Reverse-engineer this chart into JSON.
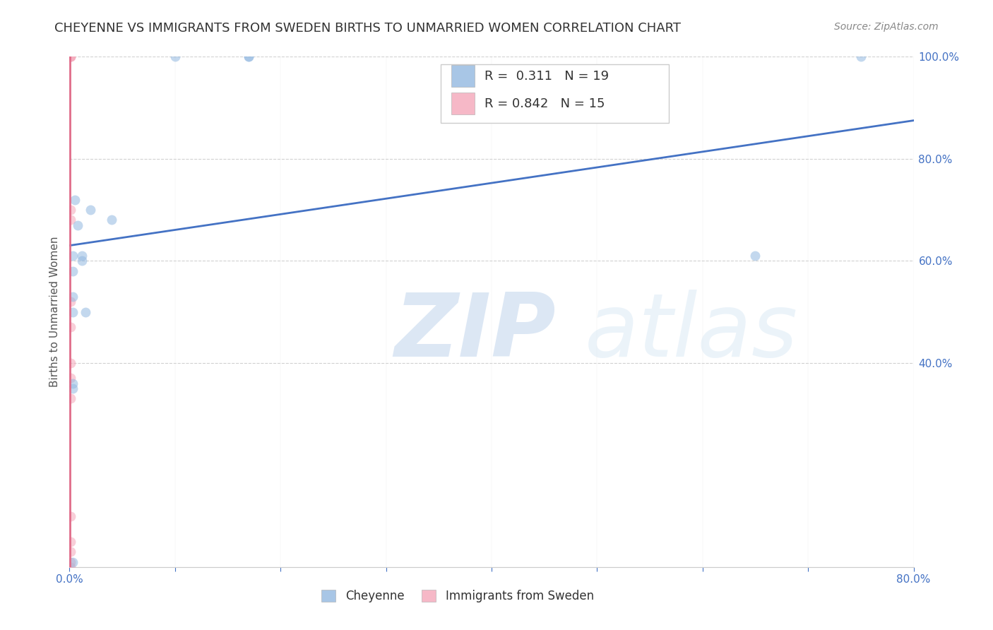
{
  "title": "CHEYENNE VS IMMIGRANTS FROM SWEDEN BIRTHS TO UNMARRIED WOMEN CORRELATION CHART",
  "source": "Source: ZipAtlas.com",
  "ylabel": "Births to Unmarried Women",
  "watermark": "ZIPatlas",
  "xlim": [
    0.0,
    0.8
  ],
  "ylim": [
    0.0,
    1.0
  ],
  "xticks": [
    0.0,
    0.1,
    0.2,
    0.3,
    0.4,
    0.5,
    0.6,
    0.7,
    0.8
  ],
  "xtick_labels_show": [
    "0.0%",
    "",
    "",
    "",
    "",
    "",
    "",
    "",
    "80.0%"
  ],
  "yticks_right": [
    0.4,
    0.6,
    0.8,
    1.0
  ],
  "ytick_labels_right": [
    "40.0%",
    "60.0%",
    "80.0%",
    "100.0%"
  ],
  "blue_color": "#92b8e0",
  "pink_color": "#f4a7b9",
  "trend_blue": "#4472c4",
  "trend_pink": "#e06c8a",
  "legend_R_blue": "0.311",
  "legend_N_blue": "19",
  "legend_R_pink": "0.842",
  "legend_N_pink": "15",
  "cheyenne_label": "Cheyenne",
  "sweden_label": "Immigrants from Sweden",
  "cheyenne_x": [
    0.003,
    0.003,
    0.003,
    0.003,
    0.003,
    0.003,
    0.003,
    0.005,
    0.008,
    0.012,
    0.012,
    0.015,
    0.02,
    0.04,
    0.1,
    0.17,
    0.17,
    0.65,
    0.75
  ],
  "cheyenne_y": [
    0.01,
    0.35,
    0.36,
    0.53,
    0.58,
    0.61,
    0.5,
    0.72,
    0.67,
    0.6,
    0.61,
    0.5,
    0.7,
    0.68,
    1.0,
    1.0,
    1.0,
    0.61,
    1.0
  ],
  "sweden_x": [
    0.001,
    0.001,
    0.001,
    0.001,
    0.001,
    0.001,
    0.001,
    0.001,
    0.001,
    0.001,
    0.001,
    0.001,
    0.001,
    0.001,
    0.001
  ],
  "sweden_y": [
    0.0,
    0.01,
    0.03,
    0.05,
    0.1,
    0.33,
    0.37,
    0.4,
    0.47,
    0.52,
    0.68,
    0.7,
    1.0,
    1.0,
    1.0
  ],
  "blue_trend_x0": 0.0,
  "blue_trend_y0": 0.63,
  "blue_trend_x1": 0.8,
  "blue_trend_y1": 0.875,
  "pink_trend_x0": 0.0005,
  "pink_trend_y0": 0.0,
  "pink_trend_x1": 0.0005,
  "pink_trend_y1": 1.0,
  "tick_color": "#4472c4",
  "grid_color": "#cccccc",
  "title_color": "#333333",
  "source_color": "#888888",
  "title_fontsize": 13,
  "marker_size": 10,
  "marker_alpha": 0.55
}
